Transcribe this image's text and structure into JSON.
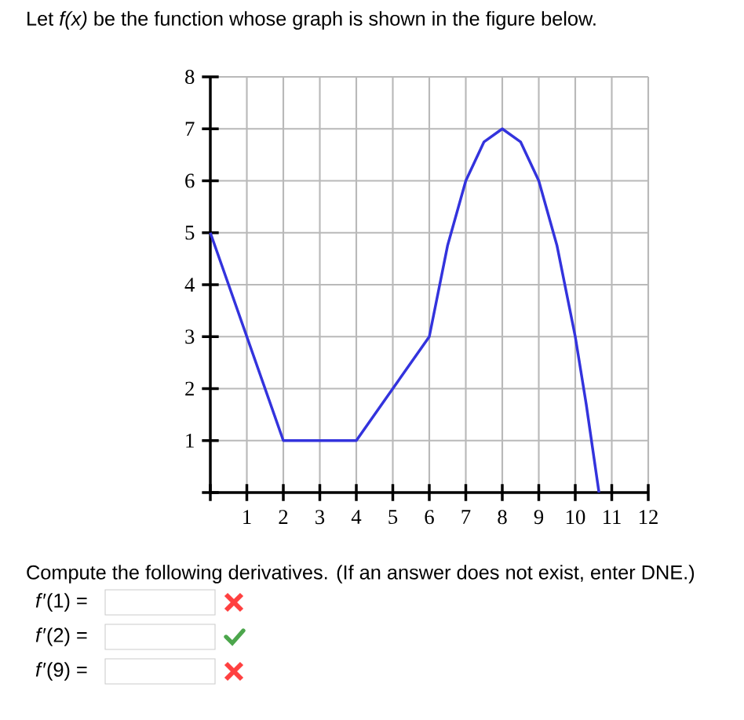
{
  "chart_data": {
    "type": "line",
    "title": "Let *f(x)* be the function whose graph is shown in the figure below.",
    "x": [
      0,
      2,
      4,
      6,
      6.5,
      7,
      7.5,
      8,
      8.5,
      9,
      9.5,
      10,
      10.3,
      10.65
    ],
    "values": [
      5,
      1,
      1,
      3,
      4.75,
      6,
      6.75,
      7,
      6.75,
      6,
      4.75,
      3,
      1.7,
      0
    ],
    "color": "#3333dd",
    "xlim": [
      0,
      12
    ],
    "ylim": [
      0,
      8
    ],
    "xticks": [
      {
        "value": 0,
        "label": null
      },
      1,
      2,
      3,
      4,
      5,
      6,
      7,
      8,
      9,
      10,
      11,
      12
    ],
    "yticks": [
      {
        "value": 0,
        "label": null
      },
      1,
      2,
      3,
      4,
      5,
      6,
      7,
      8
    ],
    "grid": true,
    "annotations": [
      "Compute the following derivatives. (If an answer does not exist, enter DNE.)",
      "*f*′(1) =",
      "*f*′(2) =",
      "*f*′(9) ="
    ]
  }
}
